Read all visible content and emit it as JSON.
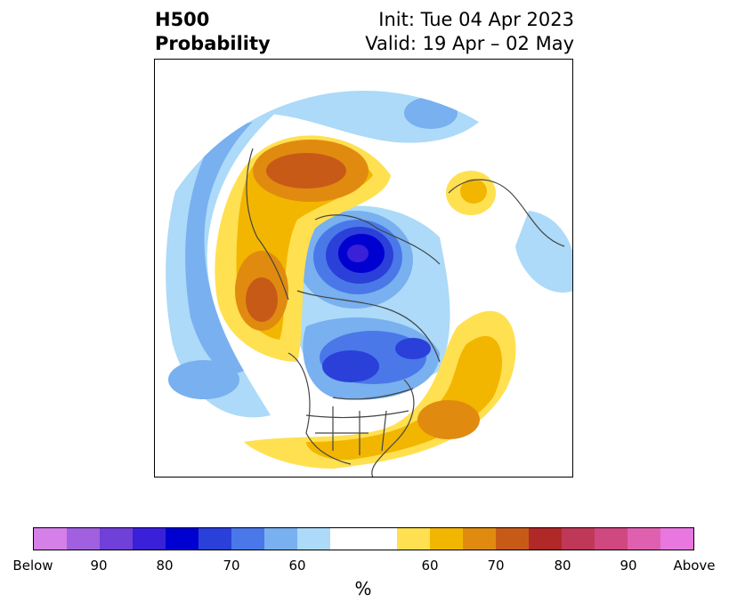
{
  "title": {
    "left_line1": "H500",
    "left_line2": "Probability",
    "right_line1": "Init: Tue 04 Apr 2023",
    "right_line2": "Valid: 19 Apr – 02 May"
  },
  "map": {
    "projection": "north-polar-stereographic",
    "features": [
      "coastlines",
      "country borders",
      "us-state borders",
      "provinces"
    ]
  },
  "colorbar": {
    "colors": [
      "#d580e8",
      "#a060e0",
      "#7040d8",
      "#3a20d8",
      "#0000d0",
      "#2a40d8",
      "#4a78e8",
      "#78b0f0",
      "#acdaf8",
      "#ffffff",
      "#ffffff",
      "#ffe050",
      "#f2b600",
      "#e08b10",
      "#c85a18",
      "#b02828",
      "#c03858",
      "#d04880",
      "#e060b0",
      "#e878e0"
    ],
    "tick_labels": [
      "Below",
      "90",
      "80",
      "70",
      "60",
      "60",
      "70",
      "80",
      "90",
      "Above"
    ],
    "unit": "%"
  }
}
